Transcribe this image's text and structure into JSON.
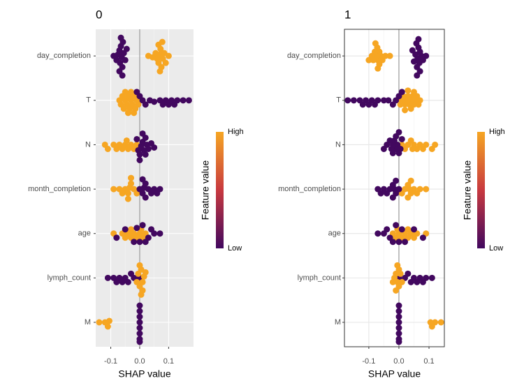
{
  "chart_data": [
    {
      "type": "beeswarm",
      "title": "0",
      "xlabel": "SHAP value",
      "theme": "gray",
      "xlim": [
        -0.152,
        0.186
      ],
      "xticks": [
        -0.1,
        {
          "value": 0,
          "label": "0.0"
        },
        0.1
      ],
      "reference_line": 0,
      "legend": {
        "title": "Feature value",
        "high": "High",
        "low": "Low",
        "colors": [
          "#42085f",
          "#c8393f",
          "#f6a623"
        ]
      },
      "features": [
        {
          "name": "day_completion",
          "shap": [
            -0.09,
            -0.08,
            -0.075,
            -0.07,
            -0.068,
            -0.065,
            -0.062,
            -0.06,
            -0.058,
            -0.055,
            -0.05,
            -0.045,
            -0.07,
            -0.065,
            -0.06,
            0.03,
            0.045,
            0.055,
            0.06,
            0.065,
            0.07,
            0.072,
            0.075,
            0.08,
            0.085,
            0.09,
            0.1,
            0.065,
            0.07,
            0.078
          ],
          "feature_value": [
            0,
            0,
            0,
            0,
            0,
            0,
            0,
            0,
            0,
            0,
            0,
            0,
            0,
            0,
            0,
            1,
            1,
            1,
            1,
            1,
            1,
            1,
            1,
            1,
            1,
            1,
            1,
            1,
            1,
            1
          ]
        },
        {
          "name": "T",
          "shap": [
            -0.07,
            -0.065,
            -0.06,
            -0.055,
            -0.05,
            -0.045,
            -0.04,
            -0.035,
            -0.03,
            -0.025,
            -0.02,
            -0.015,
            -0.01,
            -0.005,
            -0.05,
            -0.04,
            -0.03,
            -0.02,
            -0.01,
            0.0,
            0.01,
            0.02,
            0.035,
            0.05,
            0.07,
            0.08,
            0.09,
            0.1,
            0.11,
            0.12,
            0.13,
            0.15,
            0.17
          ],
          "feature_value": [
            1,
            1,
            1,
            1,
            1,
            1,
            1,
            1,
            1,
            1,
            1,
            1,
            1,
            1,
            1,
            1,
            1,
            1,
            0,
            0,
            0,
            0,
            0,
            0,
            0,
            0,
            0,
            0,
            0,
            0,
            0,
            0,
            0
          ]
        },
        {
          "name": "N",
          "shap": [
            -0.12,
            -0.11,
            -0.09,
            -0.08,
            -0.07,
            -0.06,
            -0.05,
            -0.045,
            -0.04,
            -0.03,
            -0.02,
            -0.01,
            -0.01,
            -0.005,
            0,
            0.005,
            0.01,
            0.015,
            0.02,
            0.025,
            0.03,
            0.04,
            0.05,
            0.01,
            0.02,
            0.0
          ],
          "feature_value": [
            1,
            1,
            1,
            1,
            1,
            1,
            1,
            1,
            1,
            1,
            1,
            1,
            0,
            0,
            0,
            0,
            0,
            0,
            0,
            0,
            0,
            0,
            0,
            0,
            0,
            0
          ]
        },
        {
          "name": "month_completion",
          "shap": [
            -0.09,
            -0.07,
            -0.06,
            -0.05,
            -0.04,
            -0.035,
            -0.03,
            -0.02,
            -0.01,
            -0.04,
            -0.03,
            0.0,
            0.01,
            0.015,
            0.02,
            0.03,
            0.04,
            0.05,
            0.06,
            0.07,
            0.02,
            0.01
          ],
          "feature_value": [
            1,
            1,
            1,
            1,
            1,
            1,
            1,
            1,
            1,
            1,
            1,
            0,
            0,
            0,
            0,
            0,
            0,
            0,
            0,
            0,
            0,
            0
          ]
        },
        {
          "name": "age",
          "shap": [
            -0.09,
            -0.06,
            -0.05,
            -0.04,
            -0.03,
            -0.02,
            -0.01,
            0.0,
            0.01,
            0.02,
            -0.03,
            0.005,
            -0.08,
            -0.05,
            -0.02,
            -0.01,
            0.0,
            0.01,
            0.02,
            0.03,
            0.05,
            0.07,
            0.04
          ],
          "feature_value": [
            1,
            1,
            1,
            1,
            1,
            1,
            1,
            1,
            1,
            1,
            1,
            1,
            0,
            0,
            0,
            0,
            0,
            0,
            0,
            0,
            0,
            0,
            0
          ]
        },
        {
          "name": "lymph_count",
          "shap": [
            -0.11,
            -0.09,
            -0.08,
            -0.07,
            -0.06,
            -0.05,
            -0.04,
            -0.02,
            0.0,
            -0.03,
            -0.01,
            -0.005,
            0,
            0.005,
            0.01,
            0.015,
            0.02,
            0.0,
            0.01,
            0.005
          ],
          "feature_value": [
            0,
            0,
            0,
            0,
            0,
            0,
            0,
            0,
            0,
            0,
            1,
            1,
            1,
            1,
            1,
            1,
            1,
            1,
            1,
            1
          ]
        },
        {
          "name": "M",
          "shap": [
            0,
            0,
            0,
            0,
            0,
            0,
            0,
            0,
            -0.14,
            -0.12,
            -0.11,
            -0.105
          ],
          "feature_value": [
            0,
            0,
            0,
            0,
            0,
            0,
            0,
            0,
            1,
            1,
            1,
            1
          ]
        }
      ]
    },
    {
      "type": "beeswarm",
      "title": "1",
      "xlabel": "SHAP value",
      "theme": "bw",
      "xlim": [
        -0.181,
        0.151
      ],
      "xticks": [
        -0.1,
        {
          "value": 0,
          "label": "0.0"
        },
        0.1
      ],
      "reference_line": 0,
      "legend": {
        "title": "Feature value",
        "high": "High",
        "low": "Low",
        "colors": [
          "#42085f",
          "#c8393f",
          "#f6a623"
        ]
      },
      "features": [
        {
          "name": "day_completion",
          "shap": [
            0.09,
            0.08,
            0.075,
            0.07,
            0.068,
            0.065,
            0.062,
            0.06,
            0.058,
            0.055,
            0.05,
            0.045,
            0.07,
            0.065,
            0.06,
            -0.03,
            -0.045,
            -0.055,
            -0.06,
            -0.065,
            -0.07,
            -0.072,
            -0.075,
            -0.08,
            -0.085,
            -0.09,
            -0.1,
            -0.065,
            -0.07,
            -0.078
          ],
          "feature_value": [
            0,
            0,
            0,
            0,
            0,
            0,
            0,
            0,
            0,
            0,
            0,
            0,
            0,
            0,
            0,
            1,
            1,
            1,
            1,
            1,
            1,
            1,
            1,
            1,
            1,
            1,
            1,
            1,
            1,
            1
          ]
        },
        {
          "name": "T",
          "shap": [
            0.07,
            0.065,
            0.06,
            0.055,
            0.05,
            0.045,
            0.04,
            0.035,
            0.03,
            0.025,
            0.02,
            0.015,
            0.01,
            0.005,
            0.05,
            0.04,
            0.03,
            0.02,
            0.01,
            0.0,
            -0.01,
            -0.02,
            -0.035,
            -0.05,
            -0.07,
            -0.08,
            -0.09,
            -0.1,
            -0.11,
            -0.12,
            -0.13,
            -0.15,
            -0.17
          ],
          "feature_value": [
            1,
            1,
            1,
            1,
            1,
            1,
            1,
            1,
            1,
            1,
            1,
            1,
            1,
            1,
            1,
            1,
            1,
            1,
            0,
            0,
            0,
            0,
            0,
            0,
            0,
            0,
            0,
            0,
            0,
            0,
            0,
            0,
            0
          ]
        },
        {
          "name": "N",
          "shap": [
            0.12,
            0.11,
            0.09,
            0.08,
            0.07,
            0.06,
            0.05,
            0.045,
            0.04,
            0.03,
            0.02,
            0.01,
            0.01,
            0.005,
            0,
            -0.005,
            -0.01,
            -0.015,
            -0.02,
            -0.025,
            -0.03,
            -0.04,
            -0.05,
            -0.01,
            -0.02,
            0.0
          ],
          "feature_value": [
            1,
            1,
            1,
            1,
            1,
            1,
            1,
            1,
            1,
            1,
            1,
            1,
            0,
            0,
            0,
            0,
            0,
            0,
            0,
            0,
            0,
            0,
            0,
            0,
            0,
            0
          ]
        },
        {
          "name": "month_completion",
          "shap": [
            0.09,
            0.07,
            0.06,
            0.05,
            0.04,
            0.035,
            0.03,
            0.02,
            0.01,
            0.04,
            0.03,
            0.0,
            -0.01,
            -0.015,
            -0.02,
            -0.03,
            -0.04,
            -0.05,
            -0.06,
            -0.07,
            -0.02,
            -0.01
          ],
          "feature_value": [
            1,
            1,
            1,
            1,
            1,
            1,
            1,
            1,
            1,
            1,
            1,
            0,
            0,
            0,
            0,
            0,
            0,
            0,
            0,
            0,
            0,
            0
          ]
        },
        {
          "name": "age",
          "shap": [
            0.09,
            0.06,
            0.05,
            0.04,
            0.03,
            0.02,
            0.01,
            0.0,
            -0.01,
            -0.02,
            0.03,
            -0.005,
            0.08,
            0.05,
            0.02,
            0.01,
            0.0,
            -0.01,
            -0.02,
            -0.03,
            -0.05,
            -0.07,
            -0.04
          ],
          "feature_value": [
            1,
            1,
            1,
            1,
            1,
            1,
            1,
            1,
            1,
            1,
            1,
            1,
            0,
            0,
            0,
            0,
            0,
            0,
            0,
            0,
            0,
            0,
            0
          ]
        },
        {
          "name": "lymph_count",
          "shap": [
            0.11,
            0.09,
            0.08,
            0.07,
            0.06,
            0.05,
            0.04,
            0.02,
            0.0,
            0.03,
            0.01,
            0.005,
            0,
            -0.005,
            -0.01,
            -0.015,
            -0.02,
            0.0,
            -0.01,
            -0.005
          ],
          "feature_value": [
            0,
            0,
            0,
            0,
            0,
            0,
            0,
            0,
            0,
            0,
            1,
            1,
            1,
            1,
            1,
            1,
            1,
            1,
            1,
            1
          ]
        },
        {
          "name": "M",
          "shap": [
            0,
            0,
            0,
            0,
            0,
            0,
            0,
            0,
            0.14,
            0.12,
            0.11,
            0.105
          ],
          "feature_value": [
            0,
            0,
            0,
            0,
            0,
            0,
            0,
            0,
            1,
            1,
            1,
            1
          ]
        }
      ]
    }
  ]
}
